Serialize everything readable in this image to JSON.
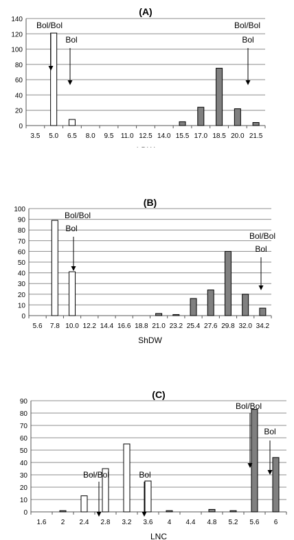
{
  "chart_data": [
    {
      "type": "bar",
      "title": "(A)",
      "xlabel": "LDW",
      "ylabel": "",
      "ylim": [
        0,
        140
      ],
      "yticks": [
        0,
        20,
        40,
        60,
        80,
        100,
        120,
        140
      ],
      "categories": [
        "3.5",
        "5.0",
        "6.5",
        "8.0",
        "9.5",
        "11.0",
        "12.5",
        "14.0",
        "15.5",
        "17.0",
        "18.5",
        "20.0",
        "21.5"
      ],
      "series": [
        {
          "fill": "#ffffff",
          "values": [
            0,
            121,
            8,
            0,
            0,
            0,
            0,
            0,
            0,
            0,
            0,
            0,
            0
          ]
        },
        {
          "fill": "#808080",
          "values": [
            0,
            0,
            0,
            0,
            0,
            0,
            0,
            0,
            5,
            24,
            75,
            22,
            4
          ]
        }
      ],
      "grid": true,
      "annotations": [
        {
          "text": "Bol/Bol",
          "arrow_at": "5.0"
        },
        {
          "text": "Bol",
          "arrow_at": "6.5"
        },
        {
          "text": "Bol/Bol",
          "arrow_at": "20.0"
        },
        {
          "text": "Bol",
          "arrow_at": "20.0"
        }
      ]
    },
    {
      "type": "bar",
      "title": "(B)",
      "xlabel": "ShDW",
      "ylabel": "",
      "ylim": [
        0,
        100
      ],
      "yticks": [
        0,
        10,
        20,
        30,
        40,
        50,
        60,
        70,
        80,
        90,
        100
      ],
      "categories": [
        "5.6",
        "7.8",
        "10.0",
        "12.2",
        "14.4",
        "16.6",
        "18.8",
        "21.0",
        "23.2",
        "25.4",
        "27.6",
        "29.8",
        "32.0",
        "34.2"
      ],
      "series": [
        {
          "fill": "#ffffff",
          "values": [
            0,
            89,
            41,
            0,
            0,
            0,
            0,
            0,
            0,
            0,
            0,
            0,
            0,
            0
          ]
        },
        {
          "fill": "#808080",
          "values": [
            0,
            0,
            0,
            0,
            0,
            0,
            0,
            2,
            1,
            16,
            24,
            60,
            20,
            7
          ]
        }
      ],
      "grid": true,
      "annotations": [
        {
          "text": "Bol/Bol",
          "arrow_at": "7.8"
        },
        {
          "text": "Bol",
          "arrow_at": "10.0"
        },
        {
          "text": "Bol/Bol",
          "arrow_at": "32.0"
        },
        {
          "text": "Bol",
          "arrow_at": "32.0"
        }
      ]
    },
    {
      "type": "bar",
      "title": "(C)",
      "xlabel": "LNC",
      "ylabel": "",
      "ylim": [
        0,
        90
      ],
      "yticks": [
        0,
        10,
        20,
        30,
        40,
        50,
        60,
        70,
        80,
        90
      ],
      "categories": [
        "1.6",
        "2",
        "2.4",
        "2.8",
        "3.2",
        "3.6",
        "4",
        "4.4",
        "4.8",
        "5.2",
        "5.6",
        "6"
      ],
      "series": [
        {
          "fill": "#ffffff",
          "values": [
            0,
            0,
            13,
            35,
            55,
            25,
            0,
            0,
            0,
            0,
            0,
            0
          ]
        },
        {
          "fill": "#808080",
          "values": [
            0,
            1,
            0,
            0,
            0,
            0,
            1,
            0,
            2,
            1,
            83,
            44
          ]
        }
      ],
      "grid": true,
      "annotations": [
        {
          "text": "Bol/Bol",
          "arrow_at": "2.8"
        },
        {
          "text": "Bol",
          "arrow_at": "3.6"
        },
        {
          "text": "Bol/Bol",
          "arrow_at": "5.6"
        },
        {
          "text": "Bol",
          "arrow_at": "6"
        }
      ]
    }
  ]
}
